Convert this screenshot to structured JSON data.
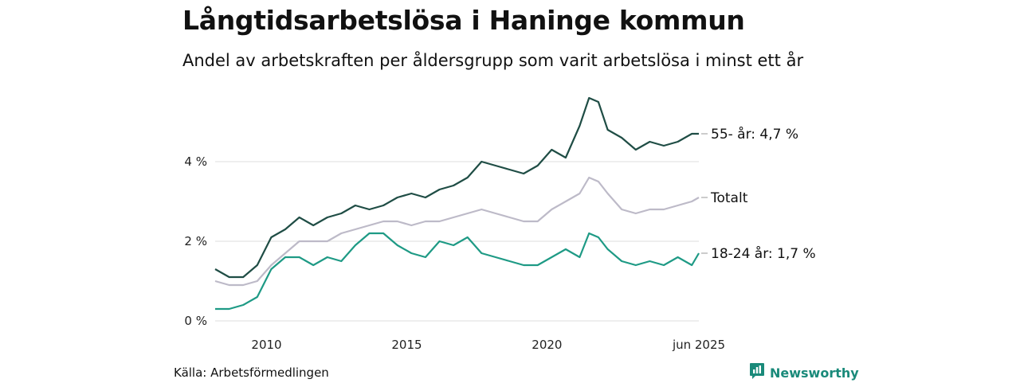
{
  "header": {
    "title": "Långtidsarbetslösa i Haninge kommun",
    "subtitle": "Andel av arbetskraften per åldersgrupp som varit arbetslösa i minst ett år"
  },
  "footer": {
    "source": "Källa: Arbetsförmedlingen",
    "brand": "Newsworthy",
    "brand_icon": "bar-chart-logo-icon",
    "brand_color": "#1a8a7a"
  },
  "chart_data": {
    "type": "line",
    "title": "Långtidsarbetslösa i Haninge kommun",
    "subtitle": "Andel av arbetskraften per åldersgrupp som varit arbetslösa i minst ett år",
    "xlabel": "",
    "ylabel": "",
    "xlim": [
      "2008-03",
      "2025-06"
    ],
    "ylim": [
      0,
      6
    ],
    "y_ticks": [
      0,
      2,
      4
    ],
    "y_tick_labels": [
      "0 %",
      "2 %",
      "4 %"
    ],
    "x_ticks": [
      "2010-01",
      "2015-01",
      "2020-01",
      "2025-06"
    ],
    "x_tick_labels": [
      "2010",
      "2015",
      "2020",
      "jun 2025"
    ],
    "grid": "horizontal",
    "legend": "direct labels at line ends",
    "series": [
      {
        "name": "55- år",
        "end_label": "55- år: 4,7 %",
        "color": "#1f4d45",
        "x": [
          "2008-03",
          "2008-09",
          "2009-03",
          "2009-09",
          "2010-03",
          "2010-09",
          "2011-03",
          "2011-09",
          "2012-03",
          "2012-09",
          "2013-03",
          "2013-09",
          "2014-03",
          "2014-09",
          "2015-03",
          "2015-09",
          "2016-03",
          "2016-09",
          "2017-03",
          "2017-09",
          "2018-03",
          "2018-09",
          "2019-03",
          "2019-09",
          "2020-03",
          "2020-09",
          "2021-03",
          "2021-07",
          "2021-11",
          "2022-03",
          "2022-09",
          "2023-03",
          "2023-09",
          "2024-03",
          "2024-09",
          "2025-03",
          "2025-06"
        ],
        "values": [
          1.3,
          1.1,
          1.1,
          1.4,
          2.1,
          2.3,
          2.6,
          2.4,
          2.6,
          2.7,
          2.9,
          2.8,
          2.9,
          3.1,
          3.2,
          3.1,
          3.3,
          3.4,
          3.6,
          4.0,
          3.9,
          3.8,
          3.7,
          3.9,
          4.3,
          4.1,
          4.9,
          5.6,
          5.5,
          4.8,
          4.6,
          4.3,
          4.5,
          4.4,
          4.5,
          4.7,
          4.7
        ]
      },
      {
        "name": "Totalt",
        "end_label": "Totalt",
        "color": "#bdbac8",
        "x": [
          "2008-03",
          "2008-09",
          "2009-03",
          "2009-09",
          "2010-03",
          "2010-09",
          "2011-03",
          "2011-09",
          "2012-03",
          "2012-09",
          "2013-03",
          "2013-09",
          "2014-03",
          "2014-09",
          "2015-03",
          "2015-09",
          "2016-03",
          "2016-09",
          "2017-03",
          "2017-09",
          "2018-03",
          "2018-09",
          "2019-03",
          "2019-09",
          "2020-03",
          "2020-09",
          "2021-03",
          "2021-07",
          "2021-11",
          "2022-03",
          "2022-09",
          "2023-03",
          "2023-09",
          "2024-03",
          "2024-09",
          "2025-03",
          "2025-06"
        ],
        "values": [
          1.0,
          0.9,
          0.9,
          1.0,
          1.4,
          1.7,
          2.0,
          2.0,
          2.0,
          2.2,
          2.3,
          2.4,
          2.5,
          2.5,
          2.4,
          2.5,
          2.5,
          2.6,
          2.7,
          2.8,
          2.7,
          2.6,
          2.5,
          2.5,
          2.8,
          3.0,
          3.2,
          3.6,
          3.5,
          3.2,
          2.8,
          2.7,
          2.8,
          2.8,
          2.9,
          3.0,
          3.1
        ]
      },
      {
        "name": "18-24 år",
        "end_label": "18-24 år: 1,7 %",
        "color": "#1e9a85",
        "x": [
          "2008-03",
          "2008-09",
          "2009-03",
          "2009-09",
          "2010-03",
          "2010-09",
          "2011-03",
          "2011-09",
          "2012-03",
          "2012-09",
          "2013-03",
          "2013-09",
          "2014-03",
          "2014-09",
          "2015-03",
          "2015-09",
          "2016-03",
          "2016-09",
          "2017-03",
          "2017-09",
          "2018-03",
          "2018-09",
          "2019-03",
          "2019-09",
          "2020-03",
          "2020-09",
          "2021-03",
          "2021-07",
          "2021-11",
          "2022-03",
          "2022-09",
          "2023-03",
          "2023-09",
          "2024-03",
          "2024-09",
          "2025-03",
          "2025-06"
        ],
        "values": [
          0.3,
          0.3,
          0.4,
          0.6,
          1.3,
          1.6,
          1.6,
          1.4,
          1.6,
          1.5,
          1.9,
          2.2,
          2.2,
          1.9,
          1.7,
          1.6,
          2.0,
          1.9,
          2.1,
          1.7,
          1.6,
          1.5,
          1.4,
          1.4,
          1.6,
          1.8,
          1.6,
          2.2,
          2.1,
          1.8,
          1.5,
          1.4,
          1.5,
          1.4,
          1.6,
          1.4,
          1.7
        ]
      }
    ]
  }
}
